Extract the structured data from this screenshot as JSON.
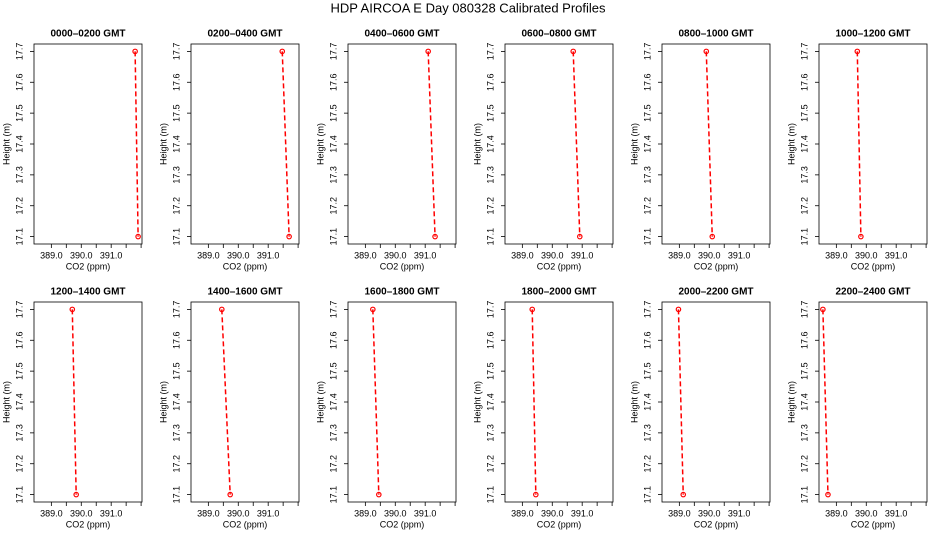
{
  "title": "HDP AIRCOA E  Day 080328  Calibrated Profiles",
  "chart_data": [
    {
      "type": "line",
      "title": "0000–0200 GMT",
      "xlabel": "CO2 (ppm)",
      "ylabel": "Height (m)",
      "x": [
        391.8,
        391.9
      ],
      "values": [
        17.7,
        17.1
      ],
      "color": "#ff0000",
      "xlim": [
        388.42,
        392.03
      ],
      "ylim": [
        17.076,
        17.724
      ],
      "xticks": [
        {
          "value": 389,
          "label": "389.0"
        },
        {
          "value": 390,
          "label": "390.0"
        },
        {
          "value": 391,
          "label": "391.0"
        }
      ],
      "xminorticks": [
        389.5,
        390.5,
        391.5,
        392
      ],
      "yticks": [
        17.1,
        17.2,
        17.3,
        17.4,
        17.5,
        17.6,
        17.7
      ]
    },
    {
      "type": "line",
      "title": "0200–0400 GMT",
      "xlabel": "CO2 (ppm)",
      "ylabel": "Height (m)",
      "x": [
        391.47,
        391.7
      ],
      "values": [
        17.7,
        17.1
      ],
      "color": "#ff0000",
      "xlim": [
        388.42,
        392.03
      ],
      "ylim": [
        17.076,
        17.724
      ],
      "xticks": [
        {
          "value": 389,
          "label": "389.0"
        },
        {
          "value": 390,
          "label": "390.0"
        },
        {
          "value": 391,
          "label": "391.0"
        }
      ],
      "xminorticks": [
        389.5,
        390.5,
        391.5,
        392
      ],
      "yticks": [
        17.1,
        17.2,
        17.3,
        17.4,
        17.5,
        17.6,
        17.7
      ]
    },
    {
      "type": "line",
      "title": "0400–0600 GMT",
      "xlabel": "CO2 (ppm)",
      "ylabel": "Height (m)",
      "x": [
        391.1,
        391.33
      ],
      "values": [
        17.7,
        17.1
      ],
      "color": "#ff0000",
      "xlim": [
        388.42,
        392.03
      ],
      "ylim": [
        17.076,
        17.724
      ],
      "xticks": [
        {
          "value": 389,
          "label": "389.0"
        },
        {
          "value": 390,
          "label": "390.0"
        },
        {
          "value": 391,
          "label": "391.0"
        }
      ],
      "xminorticks": [
        389.5,
        390.5,
        391.5,
        392
      ],
      "yticks": [
        17.1,
        17.2,
        17.3,
        17.4,
        17.5,
        17.6,
        17.7
      ]
    },
    {
      "type": "line",
      "title": "0600–0800 GMT",
      "xlabel": "CO2 (ppm)",
      "ylabel": "Height (m)",
      "x": [
        390.7,
        390.92
      ],
      "values": [
        17.7,
        17.1
      ],
      "color": "#ff0000",
      "xlim": [
        388.42,
        392.03
      ],
      "ylim": [
        17.076,
        17.724
      ],
      "xticks": [
        {
          "value": 389,
          "label": "389.0"
        },
        {
          "value": 390,
          "label": "390.0"
        },
        {
          "value": 391,
          "label": "391.0"
        }
      ],
      "xminorticks": [
        389.5,
        390.5,
        391.5,
        392
      ],
      "yticks": [
        17.1,
        17.2,
        17.3,
        17.4,
        17.5,
        17.6,
        17.7
      ]
    },
    {
      "type": "line",
      "title": "0800–1000 GMT",
      "xlabel": "CO2 (ppm)",
      "ylabel": "Height (m)",
      "x": [
        389.9,
        390.1
      ],
      "values": [
        17.7,
        17.1
      ],
      "color": "#ff0000",
      "xlim": [
        388.42,
        392.03
      ],
      "ylim": [
        17.076,
        17.724
      ],
      "xticks": [
        {
          "value": 389,
          "label": "389.0"
        },
        {
          "value": 390,
          "label": "390.0"
        },
        {
          "value": 391,
          "label": "391.0"
        }
      ],
      "xminorticks": [
        389.5,
        390.5,
        391.5,
        392
      ],
      "yticks": [
        17.1,
        17.2,
        17.3,
        17.4,
        17.5,
        17.6,
        17.7
      ]
    },
    {
      "type": "line",
      "title": "1000–1200 GMT",
      "xlabel": "CO2 (ppm)",
      "ylabel": "Height (m)",
      "x": [
        389.7,
        389.82
      ],
      "values": [
        17.7,
        17.1
      ],
      "color": "#ff0000",
      "xlim": [
        388.42,
        392.03
      ],
      "ylim": [
        17.076,
        17.724
      ],
      "xticks": [
        {
          "value": 389,
          "label": "389.0"
        },
        {
          "value": 390,
          "label": "390.0"
        },
        {
          "value": 391,
          "label": "391.0"
        }
      ],
      "xminorticks": [
        389.5,
        390.5,
        391.5,
        392
      ],
      "yticks": [
        17.1,
        17.2,
        17.3,
        17.4,
        17.5,
        17.6,
        17.7
      ]
    },
    {
      "type": "line",
      "title": "1200–1400 GMT",
      "xlabel": "CO2 (ppm)",
      "ylabel": "Height (m)",
      "x": [
        389.7,
        389.83
      ],
      "values": [
        17.7,
        17.1
      ],
      "color": "#ff0000",
      "xlim": [
        388.42,
        392.03
      ],
      "ylim": [
        17.076,
        17.724
      ],
      "xticks": [
        {
          "value": 389,
          "label": "389.0"
        },
        {
          "value": 390,
          "label": "390.0"
        },
        {
          "value": 391,
          "label": "391.0"
        }
      ],
      "xminorticks": [
        389.5,
        390.5,
        391.5,
        392
      ],
      "yticks": [
        17.1,
        17.2,
        17.3,
        17.4,
        17.5,
        17.6,
        17.7
      ]
    },
    {
      "type": "line",
      "title": "1400–1600 GMT",
      "xlabel": "CO2 (ppm)",
      "ylabel": "Height (m)",
      "x": [
        389.45,
        389.73
      ],
      "values": [
        17.7,
        17.1
      ],
      "color": "#ff0000",
      "xlim": [
        388.42,
        392.03
      ],
      "ylim": [
        17.076,
        17.724
      ],
      "xticks": [
        {
          "value": 389,
          "label": "389.0"
        },
        {
          "value": 390,
          "label": "390.0"
        },
        {
          "value": 391,
          "label": "391.0"
        }
      ],
      "xminorticks": [
        389.5,
        390.5,
        391.5,
        392
      ],
      "yticks": [
        17.1,
        17.2,
        17.3,
        17.4,
        17.5,
        17.6,
        17.7
      ]
    },
    {
      "type": "line",
      "title": "1600–1800 GMT",
      "xlabel": "CO2 (ppm)",
      "ylabel": "Height (m)",
      "x": [
        389.25,
        389.45
      ],
      "values": [
        17.7,
        17.1
      ],
      "color": "#ff0000",
      "xlim": [
        388.42,
        392.03
      ],
      "ylim": [
        17.076,
        17.724
      ],
      "xticks": [
        {
          "value": 389,
          "label": "389.0"
        },
        {
          "value": 390,
          "label": "390.0"
        },
        {
          "value": 391,
          "label": "391.0"
        }
      ],
      "xminorticks": [
        389.5,
        390.5,
        391.5,
        392
      ],
      "yticks": [
        17.1,
        17.2,
        17.3,
        17.4,
        17.5,
        17.6,
        17.7
      ]
    },
    {
      "type": "line",
      "title": "1800–2000 GMT",
      "xlabel": "CO2 (ppm)",
      "ylabel": "Height (m)",
      "x": [
        389.33,
        389.45
      ],
      "values": [
        17.7,
        17.1
      ],
      "color": "#ff0000",
      "xlim": [
        388.42,
        392.03
      ],
      "ylim": [
        17.076,
        17.724
      ],
      "xticks": [
        {
          "value": 389,
          "label": "389.0"
        },
        {
          "value": 390,
          "label": "390.0"
        },
        {
          "value": 391,
          "label": "391.0"
        }
      ],
      "xminorticks": [
        389.5,
        390.5,
        391.5,
        392
      ],
      "yticks": [
        17.1,
        17.2,
        17.3,
        17.4,
        17.5,
        17.6,
        17.7
      ]
    },
    {
      "type": "line",
      "title": "2000–2200 GMT",
      "xlabel": "CO2 (ppm)",
      "ylabel": "Height (m)",
      "x": [
        388.97,
        389.13
      ],
      "values": [
        17.7,
        17.1
      ],
      "color": "#ff0000",
      "xlim": [
        388.42,
        392.03
      ],
      "ylim": [
        17.076,
        17.724
      ],
      "xticks": [
        {
          "value": 389,
          "label": "389.0"
        },
        {
          "value": 390,
          "label": "390.0"
        },
        {
          "value": 391,
          "label": "391.0"
        }
      ],
      "xminorticks": [
        389.5,
        390.5,
        391.5,
        392
      ],
      "yticks": [
        17.1,
        17.2,
        17.3,
        17.4,
        17.5,
        17.6,
        17.7
      ]
    },
    {
      "type": "line",
      "title": "2200–2400 GMT",
      "xlabel": "CO2 (ppm)",
      "ylabel": "Height (m)",
      "x": [
        388.55,
        388.72
      ],
      "values": [
        17.7,
        17.1
      ],
      "color": "#ff0000",
      "xlim": [
        388.42,
        392.03
      ],
      "ylim": [
        17.076,
        17.724
      ],
      "xticks": [
        {
          "value": 389,
          "label": "389.0"
        },
        {
          "value": 390,
          "label": "390.0"
        },
        {
          "value": 391,
          "label": "391.0"
        }
      ],
      "xminorticks": [
        389.5,
        390.5,
        391.5,
        392
      ],
      "yticks": [
        17.1,
        17.2,
        17.3,
        17.4,
        17.5,
        17.6,
        17.7
      ]
    }
  ]
}
